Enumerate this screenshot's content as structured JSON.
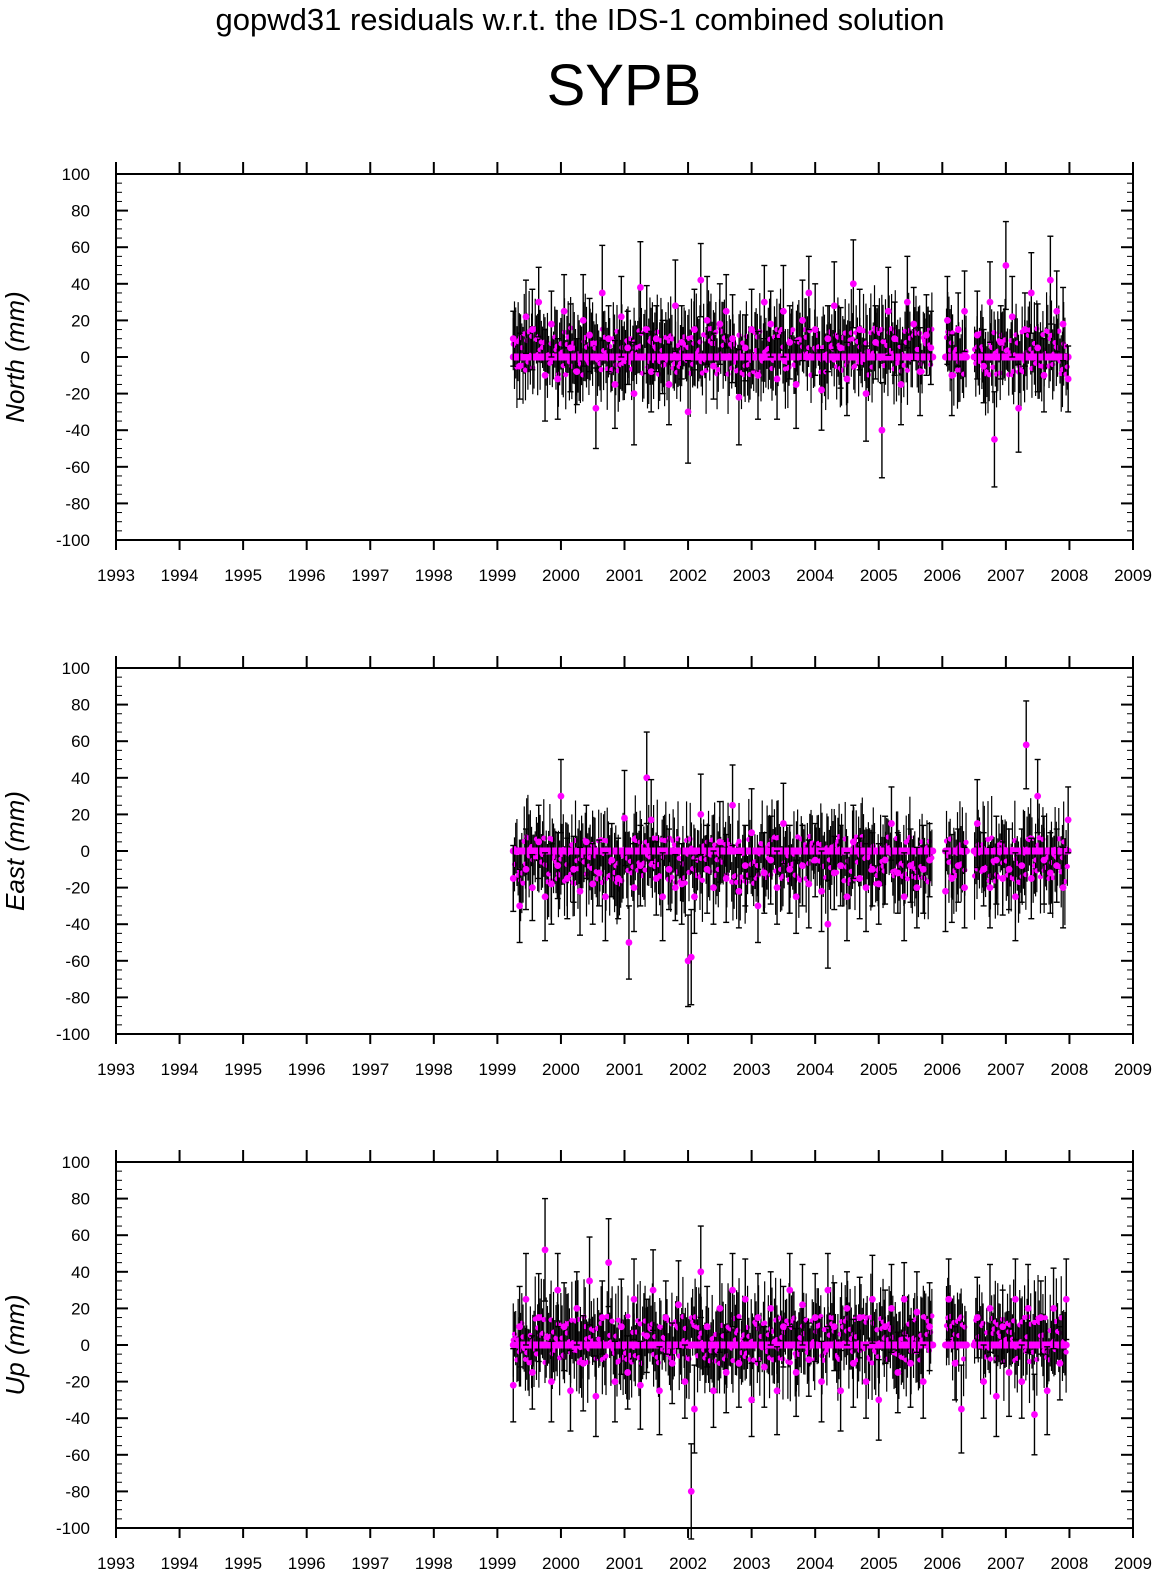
{
  "header": {
    "title": "gopwd31 residuals w.r.t. the IDS-1 combined solution",
    "station": "SYPB"
  },
  "style": {
    "point_color": "#ff00ff",
    "errorbar_color": "#000000"
  },
  "chart_data": [
    {
      "type": "scatter",
      "ylabel": "North (mm)",
      "xlim": [
        1993,
        2009
      ],
      "ylim": [
        -100,
        100
      ],
      "xticks": [
        1993,
        1994,
        1995,
        1996,
        1997,
        1998,
        1999,
        2000,
        2001,
        2002,
        2003,
        2004,
        2005,
        2006,
        2007,
        2008,
        2009
      ],
      "yticks": [
        100,
        80,
        60,
        40,
        20,
        0,
        -20,
        -40,
        -60,
        -80,
        -100
      ],
      "x": [
        1999.25,
        1999.35,
        1999.45,
        1999.55,
        1999.65,
        1999.75,
        1999.85,
        1999.95,
        2000.05,
        2000.15,
        2000.25,
        2000.35,
        2000.45,
        2000.55,
        2000.65,
        2000.75,
        2000.85,
        2000.95,
        2001.05,
        2001.15,
        2001.25,
        2001.35,
        2001.42,
        2001.5,
        2001.6,
        2001.7,
        2001.8,
        2001.9,
        2002.0,
        2002.1,
        2002.2,
        2002.3,
        2002.4,
        2002.5,
        2002.6,
        2002.7,
        2002.8,
        2002.9,
        2003.0,
        2003.1,
        2003.2,
        2003.3,
        2003.4,
        2003.5,
        2003.6,
        2003.7,
        2003.8,
        2003.9,
        2004.0,
        2004.1,
        2004.2,
        2004.3,
        2004.4,
        2004.5,
        2004.6,
        2004.7,
        2004.8,
        2004.95,
        2005.05,
        2005.15,
        2005.25,
        2005.35,
        2005.45,
        2005.55,
        2005.65,
        2005.75,
        2005.82,
        2006.08,
        2006.15,
        2006.25,
        2006.35,
        2006.55,
        2006.65,
        2006.75,
        2006.82,
        2006.92,
        2007.0,
        2007.1,
        2007.2,
        2007.3,
        2007.4,
        2007.5,
        2007.6,
        2007.7,
        2007.8,
        2007.9,
        2007.98
      ],
      "y": [
        10,
        -5,
        22,
        15,
        30,
        -10,
        18,
        -12,
        25,
        5,
        -8,
        20,
        12,
        -28,
        35,
        10,
        -15,
        22,
        5,
        -20,
        38,
        15,
        -8,
        10,
        0,
        -15,
        28,
        8,
        -30,
        15,
        42,
        20,
        -5,
        18,
        25,
        10,
        -22,
        5,
        15,
        -10,
        30,
        18,
        -12,
        25,
        8,
        -15,
        20,
        35,
        15,
        -18,
        10,
        28,
        5,
        -12,
        40,
        15,
        -20,
        8,
        -40,
        25,
        10,
        -15,
        30,
        18,
        -8,
        12,
        5,
        20,
        -10,
        15,
        25,
        12,
        -5,
        30,
        -45,
        8,
        50,
        22,
        -28,
        15,
        35,
        5,
        -10,
        42,
        25,
        18,
        -12
      ],
      "err": [
        15,
        18,
        20,
        22,
        19,
        25,
        18,
        22,
        20,
        24,
        18,
        25,
        20,
        22,
        26,
        18,
        24,
        22,
        20,
        28,
        25,
        24,
        22,
        18,
        20,
        22,
        25,
        20,
        28,
        22,
        20,
        24,
        18,
        22,
        20,
        24,
        26,
        18,
        22,
        24,
        20,
        18,
        22,
        25,
        20,
        24,
        22,
        20,
        25,
        22,
        18,
        24,
        22,
        20,
        24,
        22,
        26,
        20,
        26,
        24,
        20,
        22,
        25,
        20,
        24,
        22,
        20,
        24,
        22,
        20,
        22,
        24,
        20,
        22,
        26,
        20,
        24,
        22,
        24,
        20,
        22,
        24,
        20,
        24,
        22,
        20,
        18
      ],
      "baseline": 0
    },
    {
      "type": "scatter",
      "ylabel": "East (mm)",
      "xlim": [
        1993,
        2009
      ],
      "ylim": [
        -100,
        100
      ],
      "xticks": [
        1993,
        1994,
        1995,
        1996,
        1997,
        1998,
        1999,
        2000,
        2001,
        2002,
        2003,
        2004,
        2005,
        2006,
        2007,
        2008,
        2009
      ],
      "yticks": [
        100,
        80,
        60,
        40,
        20,
        0,
        -20,
        -40,
        -60,
        -80,
        -100
      ],
      "x": [
        1999.25,
        1999.35,
        1999.45,
        1999.55,
        1999.65,
        1999.75,
        1999.85,
        1999.95,
        2000.0,
        2000.1,
        2000.2,
        2000.3,
        2000.4,
        2000.5,
        2000.6,
        2000.7,
        2000.8,
        2000.9,
        2001.0,
        2001.07,
        2001.15,
        2001.25,
        2001.35,
        2001.42,
        2001.5,
        2001.6,
        2001.7,
        2001.8,
        2001.9,
        2002.0,
        2002.05,
        2002.1,
        2002.2,
        2002.3,
        2002.4,
        2002.5,
        2002.6,
        2002.7,
        2002.8,
        2002.9,
        2003.0,
        2003.1,
        2003.2,
        2003.3,
        2003.4,
        2003.5,
        2003.6,
        2003.7,
        2003.8,
        2003.9,
        2004.0,
        2004.1,
        2004.2,
        2004.3,
        2004.4,
        2004.5,
        2004.6,
        2004.7,
        2004.8,
        2004.9,
        2005.0,
        2005.1,
        2005.2,
        2005.3,
        2005.4,
        2005.5,
        2005.6,
        2005.7,
        2005.8,
        2006.05,
        2006.15,
        2006.25,
        2006.35,
        2006.55,
        2006.65,
        2006.75,
        2006.85,
        2006.95,
        2007.05,
        2007.15,
        2007.25,
        2007.32,
        2007.4,
        2007.5,
        2007.6,
        2007.7,
        2007.8,
        2007.9,
        2007.98
      ],
      "y": [
        -15,
        -30,
        -10,
        -20,
        5,
        -25,
        -18,
        -8,
        30,
        -15,
        -10,
        -22,
        5,
        -18,
        -12,
        -25,
        -5,
        -15,
        18,
        -50,
        -20,
        -8,
        40,
        17,
        -15,
        -25,
        -10,
        -20,
        -18,
        -60,
        -58,
        -25,
        20,
        -10,
        -20,
        5,
        -15,
        25,
        -22,
        -8,
        10,
        -30,
        -12,
        -5,
        -20,
        15,
        -10,
        -25,
        -8,
        -18,
        -5,
        -22,
        -40,
        -12,
        -8,
        -25,
        5,
        -15,
        -20,
        -10,
        -18,
        -5,
        15,
        -12,
        -25,
        -8,
        -20,
        -10,
        -5,
        -22,
        -15,
        -8,
        -20,
        15,
        -10,
        -20,
        -5,
        -15,
        -10,
        -25,
        -8,
        58,
        -15,
        30,
        -5,
        -12,
        -8,
        -20,
        17
      ],
      "err": [
        18,
        20,
        22,
        18,
        20,
        24,
        22,
        18,
        20,
        22,
        18,
        24,
        20,
        22,
        18,
        24,
        20,
        22,
        26,
        20,
        24,
        22,
        25,
        22,
        20,
        24,
        22,
        18,
        22,
        25,
        26,
        20,
        22,
        24,
        20,
        22,
        24,
        22,
        20,
        22,
        24,
        20,
        22,
        24,
        20,
        22,
        24,
        20,
        22,
        24,
        20,
        22,
        24,
        20,
        22,
        24,
        20,
        22,
        24,
        20,
        22,
        24,
        20,
        22,
        24,
        20,
        22,
        24,
        20,
        22,
        24,
        20,
        22,
        24,
        20,
        22,
        24,
        20,
        22,
        24,
        20,
        24,
        22,
        20,
        24,
        22,
        20,
        22,
        18
      ],
      "baseline": 0
    },
    {
      "type": "scatter",
      "ylabel": "Up (mm)",
      "xlim": [
        1993,
        2009
      ],
      "ylim": [
        -100,
        100
      ],
      "xticks": [
        1993,
        1994,
        1995,
        1996,
        1997,
        1998,
        1999,
        2000,
        2001,
        2002,
        2003,
        2004,
        2005,
        2006,
        2007,
        2008,
        2009
      ],
      "yticks": [
        100,
        80,
        60,
        40,
        20,
        0,
        -20,
        -40,
        -60,
        -80,
        -100
      ],
      "x": [
        1999.25,
        1999.35,
        1999.45,
        1999.55,
        1999.65,
        1999.75,
        1999.85,
        1999.95,
        2000.05,
        2000.15,
        2000.25,
        2000.35,
        2000.45,
        2000.55,
        2000.65,
        2000.75,
        2000.85,
        2000.95,
        2001.05,
        2001.15,
        2001.25,
        2001.35,
        2001.45,
        2001.55,
        2001.65,
        2001.75,
        2001.85,
        2001.95,
        2002.05,
        2002.1,
        2002.2,
        2002.3,
        2002.4,
        2002.5,
        2002.6,
        2002.7,
        2002.8,
        2002.9,
        2003.0,
        2003.1,
        2003.2,
        2003.3,
        2003.4,
        2003.5,
        2003.6,
        2003.7,
        2003.8,
        2003.9,
        2004.0,
        2004.1,
        2004.2,
        2004.3,
        2004.4,
        2004.5,
        2004.6,
        2004.7,
        2004.8,
        2004.9,
        2005.0,
        2005.1,
        2005.2,
        2005.3,
        2005.4,
        2005.5,
        2005.6,
        2005.7,
        2005.8,
        2006.1,
        2006.2,
        2006.3,
        2006.55,
        2006.65,
        2006.75,
        2006.85,
        2006.95,
        2007.05,
        2007.15,
        2007.25,
        2007.35,
        2007.45,
        2007.55,
        2007.65,
        2007.75,
        2007.85,
        2007.95
      ],
      "y": [
        -22,
        10,
        25,
        -15,
        15,
        52,
        -20,
        30,
        10,
        -25,
        20,
        -10,
        35,
        -28,
        15,
        45,
        -20,
        10,
        -15,
        25,
        -22,
        5,
        30,
        -25,
        15,
        -10,
        22,
        -20,
        -80,
        -35,
        40,
        10,
        -25,
        20,
        -15,
        30,
        -10,
        25,
        -30,
        15,
        -12,
        20,
        -25,
        10,
        30,
        -15,
        22,
        -8,
        15,
        -20,
        30,
        10,
        -25,
        20,
        -10,
        15,
        -20,
        25,
        -30,
        10,
        20,
        -15,
        25,
        -10,
        18,
        -20,
        10,
        25,
        -10,
        -35,
        15,
        -20,
        20,
        -28,
        10,
        -15,
        25,
        -20,
        20,
        -38,
        15,
        -25,
        20,
        -10,
        25
      ],
      "err": [
        20,
        22,
        25,
        20,
        24,
        28,
        22,
        20,
        24,
        22,
        20,
        26,
        24,
        22,
        20,
        24,
        22,
        26,
        20,
        22,
        24,
        20,
        22,
        24,
        20,
        22,
        24,
        20,
        26,
        24,
        25,
        22,
        20,
        24,
        22,
        20,
        24,
        22,
        20,
        24,
        22,
        20,
        24,
        22,
        20,
        24,
        22,
        20,
        24,
        22,
        20,
        24,
        22,
        20,
        24,
        22,
        20,
        24,
        22,
        20,
        24,
        22,
        20,
        24,
        22,
        20,
        24,
        22,
        20,
        24,
        22,
        20,
        24,
        22,
        20,
        24,
        22,
        20,
        24,
        22,
        20,
        24,
        22,
        20,
        22
      ],
      "baseline": 0
    }
  ]
}
